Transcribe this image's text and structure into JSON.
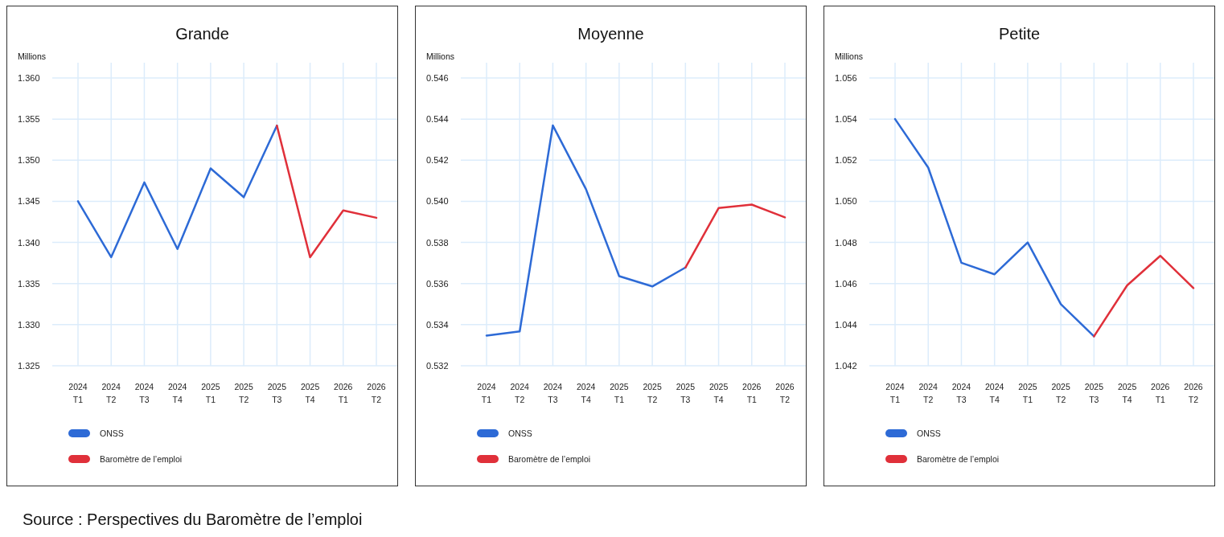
{
  "chart_data": [
    {
      "type": "line",
      "title": "Grande",
      "ylabel": "Millions",
      "categories": [
        "2024\nT1",
        "2024\nT2",
        "2024\nT3",
        "2024\nT4",
        "2025\nT1",
        "2025\nT2",
        "2025\nT3",
        "2025\nT4",
        "2026\nT1",
        "2026\nT2"
      ],
      "series": [
        {
          "name": "ONSS",
          "color": "#2d6ad6",
          "values": [
            1.345,
            1.3382,
            1.3473,
            1.3392,
            1.349,
            1.3455,
            1.3542,
            null,
            null,
            null
          ]
        },
        {
          "name": "Baromètre de l’emploi",
          "color": "#e0303a",
          "values": [
            null,
            null,
            null,
            null,
            null,
            null,
            1.3542,
            1.3382,
            1.3439,
            1.343
          ]
        }
      ],
      "ylim": [
        1.325,
        1.36
      ],
      "yticks": [
        1.325,
        {
          "value": 1.33,
          "label": "1.330"
        },
        {
          "value": 1.335,
          "label": "1.335"
        },
        {
          "value": 1.34,
          "label": "1.340"
        },
        1.345,
        {
          "value": 1.35,
          "label": "1.350"
        },
        1.355,
        {
          "value": 1.36,
          "label": "1.360"
        }
      ],
      "grid": true,
      "legend": "bottom",
      "marker": "none",
      "line_style": "solid",
      "annotations": [
        "Source : Perspectives du Baromètre de l’emploi"
      ]
    },
    {
      "type": "line",
      "title": "Moyenne",
      "ylabel": "Millions",
      "categories": [
        "2024\nT1",
        "2024\nT2",
        "2024\nT3",
        "2024\nT4",
        "2025\nT1",
        "2025\nT2",
        "2025\nT3",
        "2025\nT4",
        "2026\nT1",
        "2026\nT2"
      ],
      "series": [
        {
          "name": "ONSS",
          "color": "#2d6ad6",
          "values": [
            0.53347,
            0.53367,
            0.54369,
            0.54059,
            0.53636,
            0.53586,
            0.53678,
            null,
            null,
            null
          ]
        },
        {
          "name": "Baromètre de l’emploi",
          "color": "#e0303a",
          "values": [
            null,
            null,
            null,
            null,
            null,
            null,
            0.53678,
            0.53967,
            0.53984,
            0.53922
          ]
        }
      ],
      "ylim": [
        0.532,
        0.546
      ],
      "yticks": [
        0.532,
        0.534,
        0.536,
        0.538,
        {
          "value": 0.54,
          "label": "0.540"
        },
        0.542,
        0.544,
        0.546
      ],
      "grid": true,
      "legend": "bottom",
      "marker": "none",
      "line_style": "solid"
    },
    {
      "type": "line",
      "title": "Petite",
      "ylabel": "Millions",
      "categories": [
        "2024\nT1",
        "2024\nT2",
        "2024\nT3",
        "2024\nT4",
        "2025\nT1",
        "2025\nT2",
        "2025\nT3",
        "2025\nT4",
        "2026\nT1",
        "2026\nT2"
      ],
      "series": [
        {
          "name": "ONSS",
          "color": "#2d6ad6",
          "values": [
            1.054,
            1.05164,
            1.04701,
            1.04645,
            1.048,
            1.045,
            1.04343,
            null,
            null,
            null
          ]
        },
        {
          "name": "Baromètre de l’emploi",
          "color": "#e0303a",
          "values": [
            null,
            null,
            null,
            null,
            null,
            null,
            1.04343,
            1.04591,
            1.04735,
            1.04578
          ]
        }
      ],
      "ylim": [
        1.042,
        1.056
      ],
      "yticks": [
        1.042,
        1.044,
        1.046,
        1.048,
        {
          "value": 1.05,
          "label": "1.050"
        },
        1.052,
        1.054,
        1.056
      ],
      "grid": true,
      "legend": "bottom",
      "marker": "none",
      "line_style": "solid"
    }
  ]
}
